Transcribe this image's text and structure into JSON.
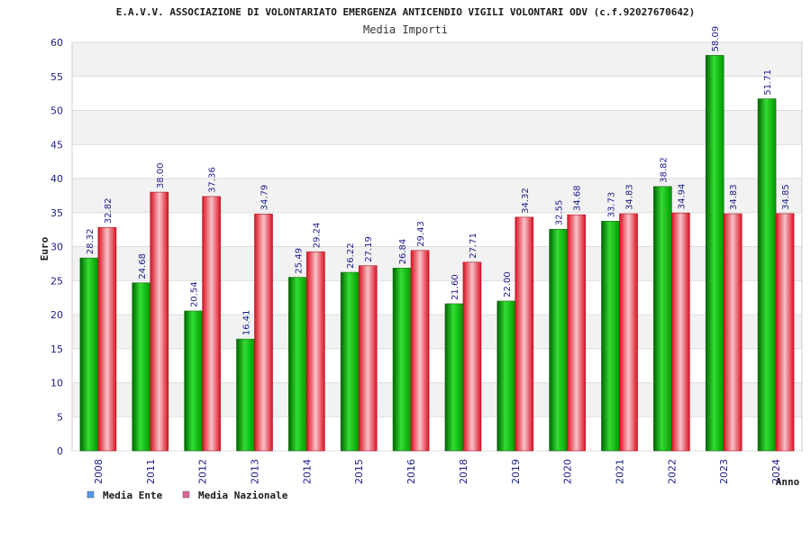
{
  "chart_data": {
    "type": "bar",
    "title": "E.A.V.V. ASSOCIAZIONE DI VOLONTARIATO EMERGENZA ANTICENDIO VIGILI VOLONTARI ODV (c.f.92027670642)",
    "subtitle": "Media Importi",
    "xlabel": "Anno",
    "ylabel": "Euro",
    "ylim": [
      0,
      60
    ],
    "yticks": [
      0,
      5,
      10,
      15,
      20,
      25,
      30,
      35,
      40,
      45,
      50,
      55,
      60
    ],
    "grid": true,
    "legend_position": "bottom-left",
    "categories": [
      "2008",
      "2011",
      "2012",
      "2013",
      "2014",
      "2015",
      "2016",
      "2018",
      "2019",
      "2020",
      "2021",
      "2022",
      "2023",
      "2024"
    ],
    "series": [
      {
        "name": "Media Ente",
        "color": "#22aa22",
        "values": [
          28.32,
          24.68,
          20.54,
          16.41,
          25.49,
          26.22,
          26.84,
          21.6,
          22.0,
          32.55,
          33.73,
          38.82,
          58.09,
          51.71
        ],
        "labels": [
          "28.32",
          "24.68",
          "20.54",
          "16.41",
          "25.49",
          "26.22",
          "26.84",
          "21.60",
          "22.00",
          "32.55",
          "33.73",
          "38.82",
          "58.09",
          "51.71"
        ]
      },
      {
        "name": "Media Nazionale",
        "color": "#ee2233",
        "values": [
          32.82,
          38.0,
          37.36,
          34.79,
          29.24,
          27.19,
          29.43,
          27.71,
          34.32,
          34.68,
          34.83,
          34.94,
          34.83,
          34.85
        ],
        "labels": [
          "32.82",
          "38.00",
          "37.36",
          "34.79",
          "29.24",
          "27.19",
          "29.43",
          "27.71",
          "34.32",
          "34.68",
          "34.83",
          "34.94",
          "34.83",
          "34.85"
        ]
      }
    ],
    "legend_swatch_colors": [
      "#5599ee",
      "#dd6699"
    ]
  }
}
